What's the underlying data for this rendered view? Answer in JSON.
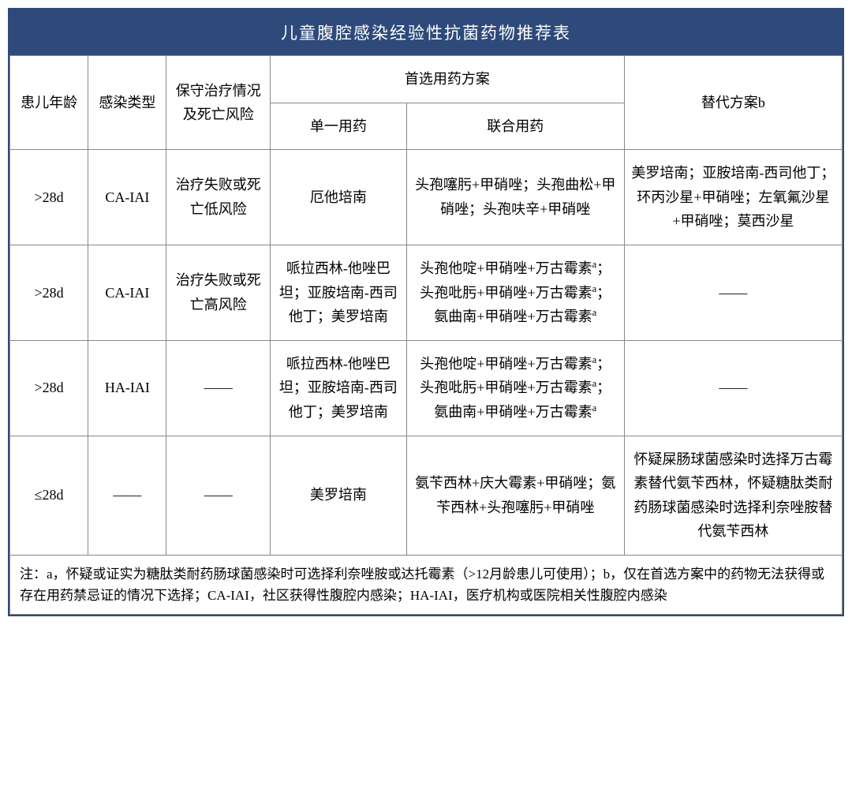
{
  "title": "儿童腹腔感染经验性抗菌药物推荐表",
  "headers": {
    "age": "患儿年龄",
    "type": "感染类型",
    "risk": "保守治疗情况及死亡风险",
    "preferred_group": "首选用药方案",
    "mono": "单一用药",
    "combo": "联合用药",
    "alt": "替代方案b"
  },
  "rows": [
    {
      "age": ">28d",
      "type": "CA-IAI",
      "risk": "治疗失败或死亡低风险",
      "mono": "厄他培南",
      "combo": "头孢噻肟+甲硝唑；头孢曲松+甲硝唑；头孢呋辛+甲硝唑",
      "alt": "美罗培南；亚胺培南-西司他丁；环丙沙星+甲硝唑；左氧氟沙星+甲硝唑；莫西沙星"
    },
    {
      "age": ">28d",
      "type": "CA-IAI",
      "risk": "治疗失败或死亡高风险",
      "mono": "哌拉西林-他唑巴坦；亚胺培南-西司他丁；美罗培南",
      "combo_html": "头孢他啶+甲硝唑+万古霉素<sup>a</sup>；头孢吡肟+甲硝唑+万古霉素<sup>a</sup>；氨曲南+甲硝唑+万古霉素<sup>a</sup>",
      "alt": "——"
    },
    {
      "age": ">28d",
      "type": "HA-IAI",
      "risk": "——",
      "mono": "哌拉西林-他唑巴坦；亚胺培南-西司他丁；美罗培南",
      "combo_html": "头孢他啶+甲硝唑+万古霉素<sup>a</sup>；头孢吡肟+甲硝唑+万古霉素<sup>a</sup>；氨曲南+甲硝唑+万古霉素<sup>a</sup>",
      "alt": "——"
    },
    {
      "age": "≤28d",
      "type": "——",
      "risk": "——",
      "mono": "美罗培南",
      "combo": "氨苄西林+庆大霉素+甲硝唑；氨苄西林+头孢噻肟+甲硝唑",
      "alt": "怀疑屎肠球菌感染时选择万古霉素替代氨苄西林，怀疑糖肽类耐药肠球菌感染时选择利奈唑胺替代氨苄西林"
    }
  ],
  "footnote": "注：a，怀疑或证实为糖肽类耐药肠球菌感染时可选择利奈唑胺或达托霉素（>12月龄患儿可使用）；b，仅在首选方案中的药物无法获得或存在用药禁忌证的情况下选择；CA-IAI，社区获得性腹腔内感染；HA-IAI，医疗机构或医院相关性腹腔内感染",
  "styling": {
    "title_bg": "#2e4a7a",
    "title_color": "#ffffff",
    "border_color": "#888888",
    "cell_bg": "#ffffff",
    "text_color": "#000000",
    "title_fontsize": 21,
    "cell_fontsize": 18,
    "footnote_fontsize": 17,
    "col_widths": {
      "age": 92,
      "type": 92,
      "risk": 122,
      "mono": 160,
      "combo": 256,
      "alt": 256
    }
  }
}
